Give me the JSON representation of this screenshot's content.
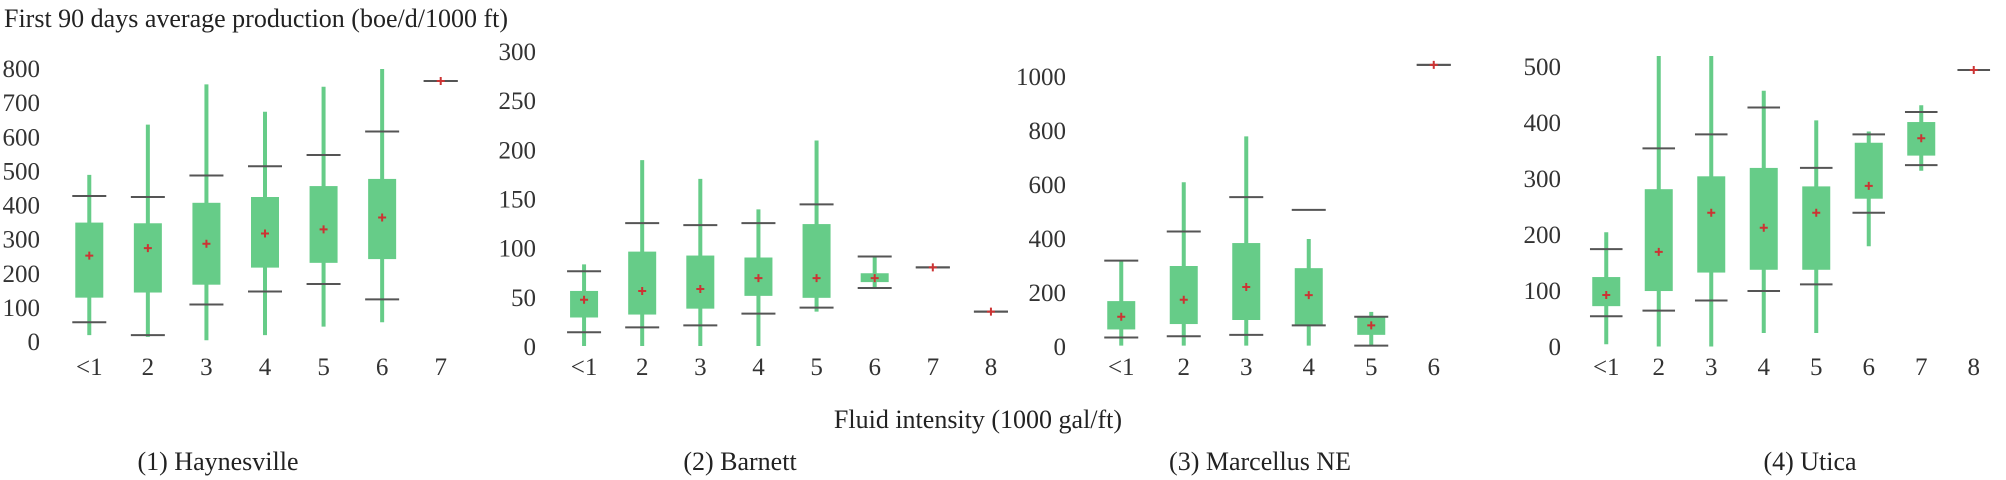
{
  "figure": {
    "ylabel": "First 90 days average production (boe/d/1000 ft)",
    "xlabel": "Fluid intensity (1000 gal/ft)"
  },
  "colors": {
    "box_fill": "#66cc88",
    "whisker": "#66cc88",
    "cap": "#555555",
    "mean_marker": "#cc3333"
  },
  "chart_data": [
    {
      "type": "box",
      "caption": "(1) Haynesville",
      "categories": [
        "<1",
        "2",
        "3",
        "4",
        "5",
        "6",
        "7"
      ],
      "ylim": [
        0,
        850
      ],
      "yticks": [
        0,
        100,
        200,
        300,
        400,
        500,
        600,
        700,
        800
      ],
      "boxes": [
        {
          "min": 20,
          "p10": 58,
          "q1": 130,
          "q3": 350,
          "p90": 428,
          "max": 490,
          "mean": 253
        },
        {
          "min": 15,
          "p10": 20,
          "q1": 145,
          "q3": 348,
          "p90": 425,
          "max": 637,
          "mean": 275
        },
        {
          "min": 5,
          "p10": 110,
          "q1": 168,
          "q3": 408,
          "p90": 488,
          "max": 755,
          "mean": 288
        },
        {
          "min": 20,
          "p10": 148,
          "q1": 218,
          "q3": 425,
          "p90": 515,
          "max": 675,
          "mean": 318
        },
        {
          "min": 45,
          "p10": 170,
          "q1": 232,
          "q3": 457,
          "p90": 548,
          "max": 748,
          "mean": 330
        },
        {
          "min": 58,
          "p10": 125,
          "q1": 243,
          "q3": 478,
          "p90": 617,
          "max": 800,
          "mean": 365
        },
        {
          "min": 765,
          "p10": 765,
          "q1": 765,
          "q3": 765,
          "p90": 765,
          "max": 765,
          "mean": 765
        }
      ]
    },
    {
      "type": "box",
      "caption": "(2) Barnett",
      "categories": [
        "<1",
        "2",
        "3",
        "4",
        "5",
        "6",
        "7",
        "8"
      ],
      "ylim": [
        0,
        300
      ],
      "yticks": [
        0,
        50,
        100,
        150,
        200,
        250,
        300
      ],
      "boxes": [
        {
          "min": 1,
          "p10": 15,
          "q1": 30,
          "q3": 57,
          "p90": 77,
          "max": 84,
          "mean": 48
        },
        {
          "min": 1,
          "p10": 20,
          "q1": 33,
          "q3": 97,
          "p90": 126,
          "max": 190,
          "mean": 57
        },
        {
          "min": 1,
          "p10": 22,
          "q1": 39,
          "q3": 93,
          "p90": 124,
          "max": 171,
          "mean": 59
        },
        {
          "min": 1,
          "p10": 34,
          "q1": 52,
          "q3": 91,
          "p90": 126,
          "max": 140,
          "mean": 70
        },
        {
          "min": 36,
          "p10": 40,
          "q1": 50,
          "q3": 125,
          "p90": 145,
          "max": 210,
          "mean": 70
        },
        {
          "min": 60,
          "p10": 60,
          "q1": 66,
          "q3": 75,
          "p90": 92,
          "max": 92,
          "mean": 70
        },
        {
          "min": 81,
          "p10": 81,
          "q1": 81,
          "q3": 81,
          "p90": 81,
          "max": 81,
          "mean": 81
        },
        {
          "min": 36,
          "p10": 36,
          "q1": 36,
          "q3": 36,
          "p90": 36,
          "max": 36,
          "mean": 36
        }
      ]
    },
    {
      "type": "box",
      "caption": "(3) Marcellus NE",
      "categories": [
        "<1",
        "2",
        "3",
        "4",
        "5",
        "6"
      ],
      "ylim": [
        0,
        1100
      ],
      "yticks": [
        0,
        200,
        400,
        600,
        800,
        1000
      ],
      "boxes": [
        {
          "min": 5,
          "p10": 35,
          "q1": 65,
          "q3": 170,
          "p90": 320,
          "max": 320,
          "mean": 112
        },
        {
          "min": 5,
          "p10": 40,
          "q1": 85,
          "q3": 300,
          "p90": 428,
          "max": 610,
          "mean": 175
        },
        {
          "min": 5,
          "p10": 45,
          "q1": 100,
          "q3": 385,
          "p90": 555,
          "max": 780,
          "mean": 222
        },
        {
          "min": 5,
          "p10": 80,
          "q1": 80,
          "q3": 292,
          "p90": 508,
          "max": 400,
          "mean": 192
        },
        {
          "min": 5,
          "p10": 5,
          "q1": 45,
          "q3": 112,
          "p90": 112,
          "max": 130,
          "mean": 80
        },
        {
          "min": 1045,
          "p10": 1045,
          "q1": 1045,
          "q3": 1045,
          "p90": 1045,
          "max": 1045,
          "mean": 1045
        }
      ]
    },
    {
      "type": "box",
      "caption": "(4) Utica",
      "categories": [
        "<1",
        "2",
        "3",
        "4",
        "5",
        "6",
        "7",
        "8"
      ],
      "ylim": [
        0,
        520
      ],
      "yticks": [
        0,
        100,
        200,
        300,
        400,
        500
      ],
      "boxes": [
        {
          "min": 5,
          "p10": 55,
          "q1": 73,
          "q3": 125,
          "p90": 175,
          "max": 205,
          "mean": 93
        },
        {
          "min": 1,
          "p10": 65,
          "q1": 100,
          "q3": 282,
          "p90": 355,
          "max": 520,
          "mean": 170
        },
        {
          "min": 1,
          "p10": 83,
          "q1": 133,
          "q3": 305,
          "p90": 380,
          "max": 520,
          "mean": 240
        },
        {
          "min": 25,
          "p10": 100,
          "q1": 138,
          "q3": 320,
          "p90": 428,
          "max": 458,
          "mean": 213
        },
        {
          "min": 25,
          "p10": 112,
          "q1": 138,
          "q3": 287,
          "p90": 320,
          "max": 405,
          "mean": 240
        },
        {
          "min": 180,
          "p10": 240,
          "q1": 265,
          "q3": 365,
          "p90": 380,
          "max": 385,
          "mean": 288
        },
        {
          "min": 315,
          "p10": 325,
          "q1": 342,
          "q3": 402,
          "p90": 420,
          "max": 432,
          "mean": 373
        },
        {
          "min": 495,
          "p10": 495,
          "q1": 495,
          "q3": 495,
          "p90": 495,
          "max": 495,
          "mean": 495
        }
      ]
    }
  ]
}
